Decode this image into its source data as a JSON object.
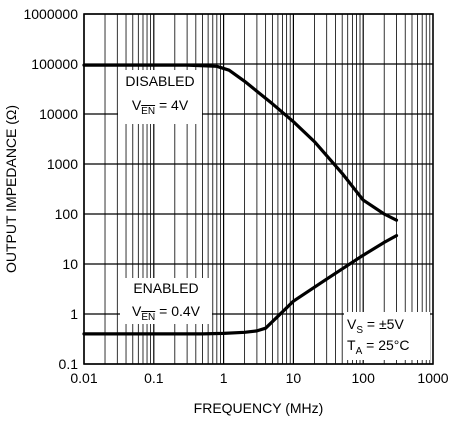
{
  "chart_data": {
    "type": "line",
    "title": "",
    "xlabel": "FREQUENCY (MHz)",
    "ylabel": "OUTPUT IMPEDANCE (Ω)",
    "x_scale": "log",
    "y_scale": "log",
    "xlim": [
      0.01,
      1000
    ],
    "ylim": [
      0.1,
      1000000
    ],
    "grid": true,
    "x_ticks": [
      "0.01",
      "0.1",
      "1",
      "10",
      "100",
      "1000"
    ],
    "y_ticks": [
      "0.1",
      "1",
      "10",
      "100",
      "1000",
      "10000",
      "100000",
      "1000000"
    ],
    "series": [
      {
        "label_line1": "DISABLED",
        "label_line2_prefix": "V",
        "label_line2_sub": "EN",
        "label_line2_suffix": " = 4V",
        "x": [
          0.01,
          0.3,
          0.8,
          1.2,
          2,
          5,
          10,
          20,
          50,
          100,
          200,
          300
        ],
        "y": [
          95000,
          95000,
          90000,
          75000,
          45000,
          16000,
          7000,
          2800,
          650,
          190,
          100,
          75
        ]
      },
      {
        "label_line1": "ENABLED",
        "label_line2_prefix": "V",
        "label_line2_sub": "EN",
        "label_line2_suffix": " = 0.4V",
        "x": [
          0.01,
          0.5,
          1,
          2,
          3,
          4,
          6,
          10,
          30,
          100,
          200,
          300
        ],
        "y": [
          0.4,
          0.4,
          0.41,
          0.43,
          0.46,
          0.52,
          0.9,
          1.8,
          5,
          15,
          27,
          37
        ]
      }
    ],
    "conditions": {
      "line1_prefix": "V",
      "line1_sub": "S",
      "line1_suffix": " = ±5V",
      "line2_prefix": "T",
      "line2_sub": "A",
      "line2_suffix": " = 25°C"
    }
  }
}
